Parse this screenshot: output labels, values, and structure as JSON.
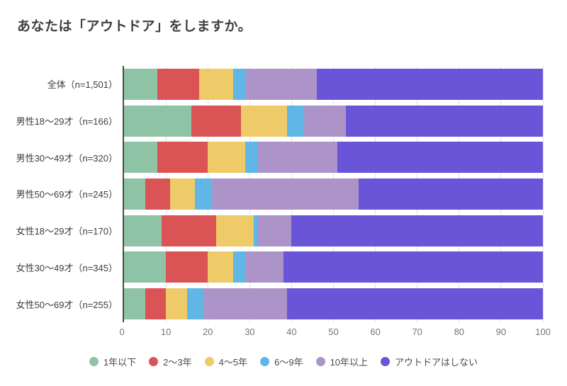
{
  "title": "あなたは「アウトドア」をしますか。",
  "chart_data": {
    "type": "bar",
    "stacked": true,
    "orientation": "horizontal",
    "title": "あなたは「アウトドア」をしますか。",
    "categories": [
      "全体（n=1,501）",
      "男性18〜29才（n=166）",
      "男性30〜49才（n=320）",
      "男性50〜69才（n=245）",
      "女性18〜29才（n=170）",
      "女性30〜49才（n=345）",
      "女性50〜69才（n=255）"
    ],
    "series": [
      {
        "name": "1年以下",
        "color": "#8EC3A5",
        "values": [
          8,
          16,
          8,
          5,
          9,
          10,
          5
        ]
      },
      {
        "name": "2〜3年",
        "color": "#DA5355",
        "values": [
          10,
          12,
          12,
          6,
          13,
          10,
          5
        ]
      },
      {
        "name": "4〜5年",
        "color": "#EECA68",
        "values": [
          8,
          11,
          9,
          6,
          9,
          6,
          5
        ]
      },
      {
        "name": "6〜9年",
        "color": "#60B6E5",
        "values": [
          3,
          4,
          3,
          4,
          1,
          3,
          4
        ]
      },
      {
        "name": "10年以上",
        "color": "#AC94C9",
        "values": [
          17,
          10,
          19,
          35,
          8,
          9,
          20
        ]
      },
      {
        "name": "アウトドアはしない",
        "color": "#6A54D8",
        "values": [
          54,
          47,
          49,
          44,
          60,
          62,
          61
        ]
      }
    ],
    "xlabel": "",
    "ylabel": "",
    "xlim": [
      0,
      100
    ],
    "xticks": [
      0,
      10,
      20,
      30,
      40,
      50,
      60,
      70,
      80,
      90,
      100
    ],
    "grid": true,
    "grid_color": "#e3e3e3",
    "axis_line_color": "#4a4a4a",
    "tick_label_color": "#757575",
    "category_label_color": "#3d3d3d",
    "legend_position": "bottom"
  }
}
